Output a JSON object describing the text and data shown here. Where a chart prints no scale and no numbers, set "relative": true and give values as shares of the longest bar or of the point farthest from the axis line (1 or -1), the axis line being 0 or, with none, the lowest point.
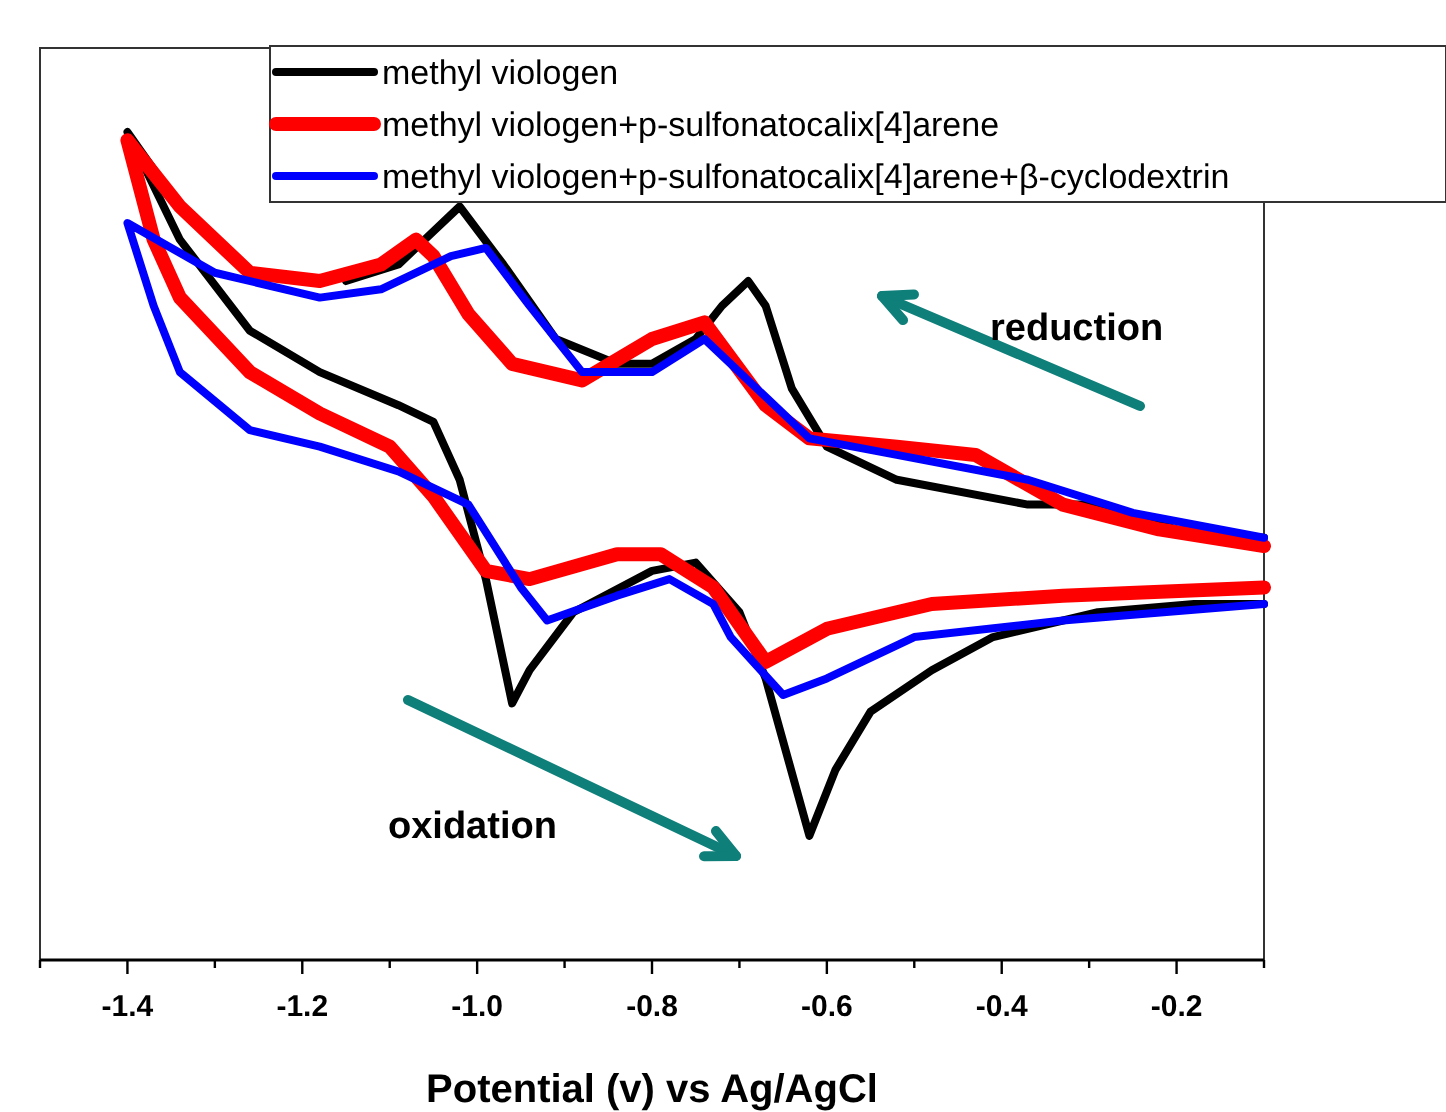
{
  "chart_data": {
    "type": "line",
    "relative": true,
    "xlabel": "Potential (v) vs Ag/AgCl",
    "xlim": [
      -1.5,
      -0.1
    ],
    "xticks": [
      {
        "value": -1.5,
        "label": null
      },
      -1.4,
      {
        "value": -1.3,
        "label": null
      },
      -1.2,
      {
        "value": -1.1,
        "label": null
      },
      {
        "value": -1,
        "label": "-1.0"
      },
      {
        "value": -0.9,
        "label": null
      },
      -0.8,
      {
        "value": -0.7,
        "label": null
      },
      -0.6,
      {
        "value": -0.5,
        "label": null
      },
      -0.4,
      {
        "value": -0.3,
        "label": null
      },
      -0.2,
      {
        "value": -0.1,
        "label": null
      }
    ],
    "legend": "top right",
    "line_style": "solid",
    "marker": "none",
    "annotations": [
      "reduction",
      "oxidation"
    ],
    "series": [
      {
        "name": "methyl viologen",
        "color": "#000000",
        "x": [
          -0.1,
          -0.2,
          -0.29,
          -0.37,
          -0.52,
          -0.6,
          -0.64,
          -0.67,
          -0.69,
          -0.72,
          -0.75,
          -0.8,
          -0.84,
          -0.91,
          -0.97,
          -1.02,
          -1.06,
          -1.09,
          -1.15,
          -1.21,
          -1.28,
          -1.34,
          -1.4,
          -1.34,
          -1.26,
          -1.18,
          -1.09,
          -1.05,
          -1.02,
          -0.99,
          -0.96,
          -0.94,
          -0.89,
          -0.8,
          -0.75,
          -0.7,
          -0.67,
          -0.62,
          -0.59,
          -0.55,
          -0.48,
          -0.41,
          -0.29,
          -0.18,
          -0.1
        ],
        "values": [
          0.51,
          0.52,
          0.55,
          0.55,
          0.58,
          0.62,
          0.69,
          0.79,
          0.82,
          0.79,
          0.75,
          0.72,
          0.72,
          0.75,
          0.84,
          0.91,
          0.87,
          0.84,
          0.82,
          null,
          null,
          0.91,
          1.0,
          0.87,
          0.76,
          0.71,
          0.67,
          0.65,
          0.58,
          0.46,
          0.31,
          0.35,
          0.42,
          0.47,
          0.48,
          0.42,
          0.34,
          0.15,
          0.23,
          0.3,
          0.35,
          0.39,
          0.42,
          0.43,
          0.43
        ]
      },
      {
        "name": "methyl viologen+p-sulfonatocalix[4]arene",
        "color": "#ff0000",
        "x": [
          -0.1,
          -0.22,
          -0.33,
          -0.43,
          -0.52,
          -0.62,
          -0.67,
          -0.74,
          -0.8,
          -0.88,
          -0.96,
          -1.01,
          -1.05,
          -1.07,
          -1.11,
          -1.18,
          -1.26,
          -1.34,
          -1.4,
          -1.37,
          -1.34,
          -1.26,
          -1.18,
          -1.1,
          -1.05,
          -0.99,
          -0.94,
          -0.84,
          -0.79,
          -0.73,
          -0.71,
          -0.67,
          -0.6,
          -0.48,
          -0.33,
          -0.1
        ],
        "values": [
          0.5,
          0.52,
          0.55,
          0.61,
          0.62,
          0.63,
          0.67,
          0.77,
          0.75,
          0.7,
          0.72,
          0.78,
          0.85,
          0.87,
          0.84,
          0.82,
          0.83,
          0.91,
          0.99,
          0.87,
          0.8,
          0.71,
          0.66,
          0.62,
          0.56,
          0.47,
          0.46,
          0.49,
          0.49,
          0.45,
          0.42,
          0.36,
          0.4,
          0.43,
          0.44,
          0.45
        ]
      },
      {
        "name": "methyl viologen+p-sulfonatocalix[4]arene+β-cyclodextrin",
        "color": "#0000ff",
        "x": [
          -0.1,
          -0.25,
          -0.37,
          -0.52,
          -0.62,
          -0.67,
          -0.74,
          -0.8,
          -0.88,
          -0.94,
          -0.99,
          -1.03,
          -1.11,
          -1.18,
          -1.3,
          -1.4,
          -1.37,
          -1.34,
          -1.26,
          -1.18,
          -1.09,
          -1.01,
          -0.95,
          -0.92,
          -0.84,
          -0.78,
          -0.73,
          -0.71,
          -0.65,
          -0.6,
          -0.5,
          -0.33,
          -0.1
        ],
        "values": [
          0.51,
          0.54,
          0.58,
          0.61,
          0.63,
          0.68,
          0.75,
          0.71,
          0.71,
          0.79,
          0.86,
          0.85,
          0.81,
          0.8,
          0.83,
          0.89,
          0.79,
          0.71,
          0.64,
          0.62,
          0.59,
          0.55,
          0.45,
          0.41,
          0.44,
          0.46,
          0.43,
          0.39,
          0.32,
          0.34,
          0.39,
          0.41,
          0.43
        ]
      }
    ]
  }
}
